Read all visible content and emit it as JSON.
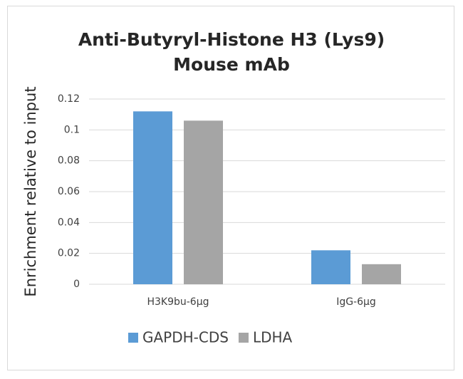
{
  "chart_data": {
    "type": "bar",
    "title": "Anti-Butyryl-Histone H3 (Lys9) Mouse mAb",
    "y_label": "Enrichment relative to input",
    "categories": [
      "H3K9bu-6μg",
      "IgG-6μg"
    ],
    "series": [
      {
        "name": "GAPDH-CDS",
        "color": "#5b9bd5",
        "values": [
          0.112,
          0.022
        ]
      },
      {
        "name": "LDHA",
        "color": "#a5a5a5",
        "values": [
          0.106,
          0.013
        ]
      }
    ],
    "ylim": [
      0,
      0.12
    ],
    "yticks": [
      0,
      0.02,
      0.04,
      0.06,
      0.08,
      0.1,
      0.12
    ],
    "grid": true,
    "legend": "bottom"
  }
}
